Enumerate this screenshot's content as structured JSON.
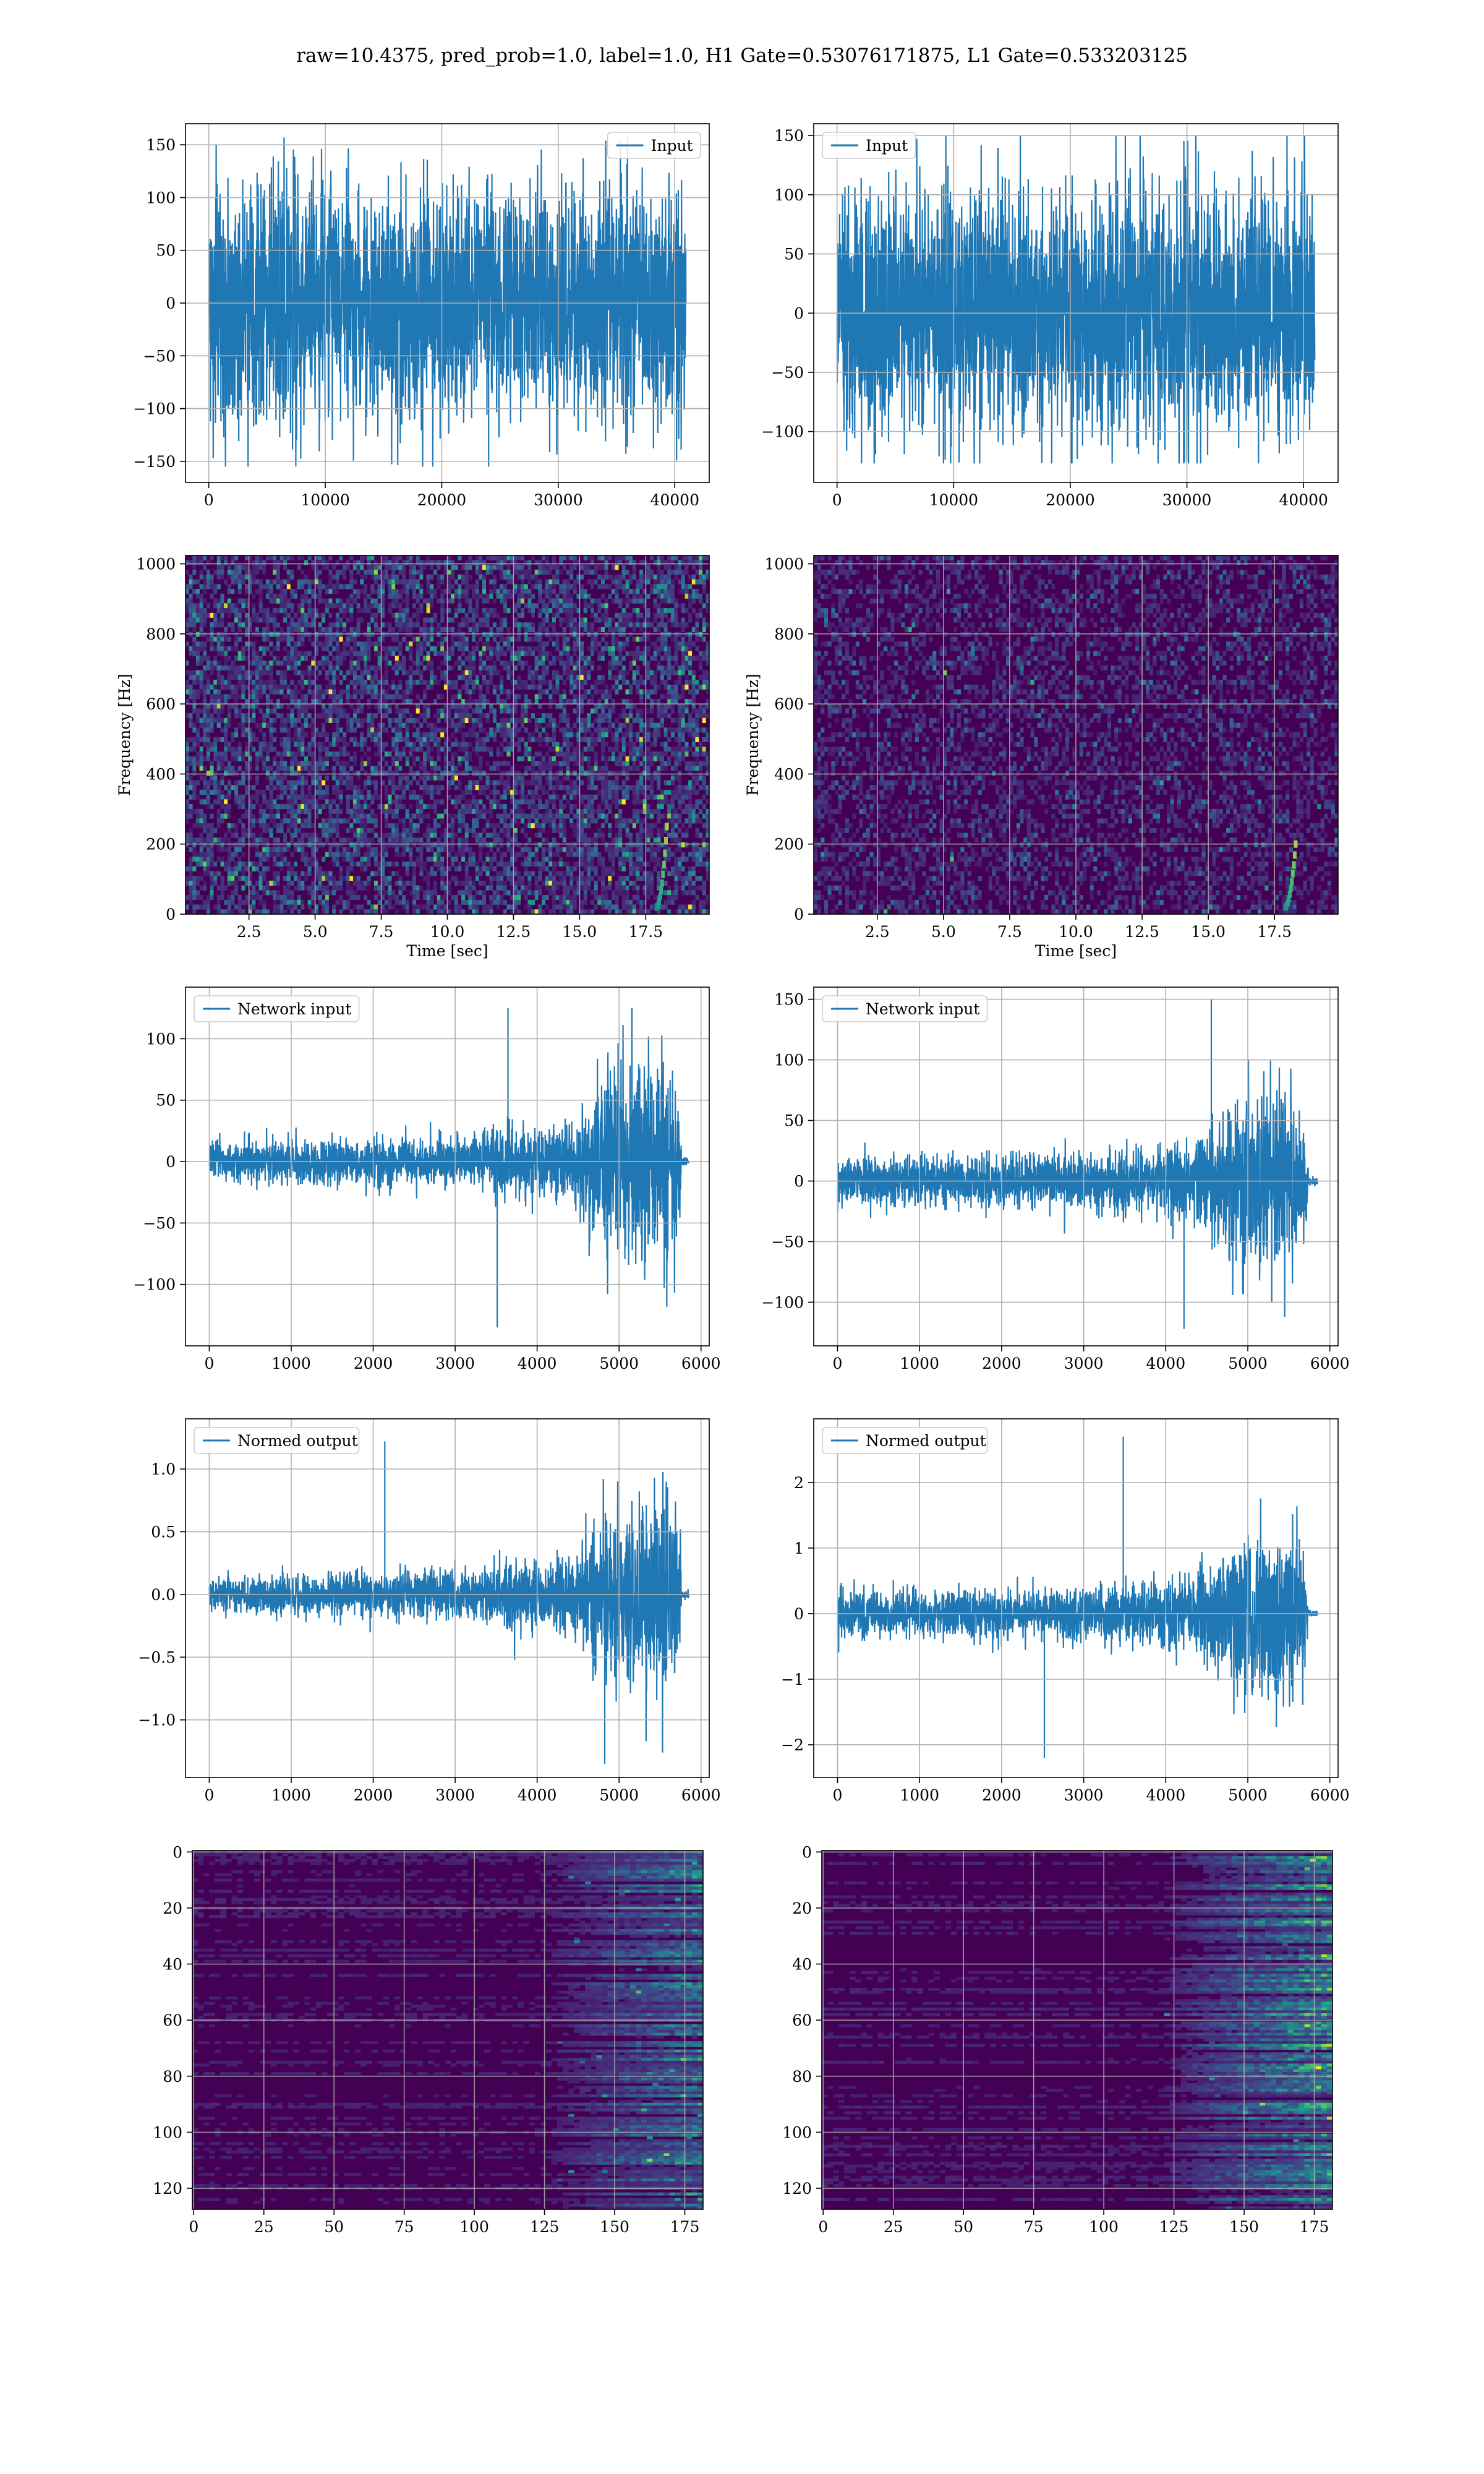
{
  "suptitle": "raw=10.4375, pred_prob=1.0, label=1.0, H1 Gate=0.53076171875, L1 Gate=0.533203125",
  "colors": {
    "line": "#1f77b4",
    "grid": "#b0b0b0",
    "viridis_low": "#440154",
    "viridis_mid": "#21918c",
    "viridis_high": "#fde725"
  },
  "chart_data": [
    {
      "id": "h1-input",
      "type": "line",
      "legend": "Input",
      "legend_loc": "upper right",
      "grid": true,
      "xlim": [
        -2000,
        42960
      ],
      "ylim": [
        -170,
        170
      ],
      "xticks": [
        0,
        10000,
        20000,
        30000,
        40000
      ],
      "yticks": [
        -150,
        -100,
        -50,
        0,
        50,
        100,
        150
      ],
      "envelope": {
        "x": [
          0,
          40960
        ],
        "amplitude_typical": [
          90,
          90
        ],
        "y_max": 157,
        "y_min": -155,
        "noise_type": "stationary gaussian"
      }
    },
    {
      "id": "l1-input",
      "type": "line",
      "legend": "Input",
      "legend_loc": "upper left",
      "grid": true,
      "xlim": [
        -2000,
        42960
      ],
      "ylim": [
        -143,
        160
      ],
      "xticks": [
        0,
        10000,
        20000,
        30000,
        40000
      ],
      "yticks": [
        -100,
        -50,
        0,
        50,
        100,
        150
      ],
      "envelope": {
        "x": [
          0,
          40960
        ],
        "amplitude_typical": [
          85,
          85
        ],
        "y_max": 150,
        "y_min": -127,
        "noise_type": "stationary gaussian"
      }
    },
    {
      "id": "h1-spectrogram",
      "type": "heatmap",
      "colormap": "viridis",
      "ylabel": "Frequency [Hz]",
      "xlabel": "Time [sec]",
      "grid": true,
      "xlim": [
        0.1,
        19.9
      ],
      "ylim": [
        0,
        1024
      ],
      "xticks": [
        2.5,
        5.0,
        7.5,
        10.0,
        12.5,
        15.0,
        17.5
      ],
      "yticks": [
        0,
        200,
        400,
        600,
        800,
        1000
      ],
      "intensity": 0.55,
      "chirp": {
        "t_start": 17.9,
        "t_end": 18.3,
        "f_start": 20,
        "f_end": 250
      }
    },
    {
      "id": "l1-spectrogram",
      "type": "heatmap",
      "colormap": "viridis",
      "ylabel": "Frequency [Hz]",
      "xlabel": "Time [sec]",
      "grid": true,
      "xlim": [
        0.1,
        19.9
      ],
      "ylim": [
        0,
        1024
      ],
      "xticks": [
        2.5,
        5.0,
        7.5,
        10.0,
        12.5,
        15.0,
        17.5
      ],
      "yticks": [
        0,
        200,
        400,
        600,
        800,
        1000
      ],
      "intensity": 0.3,
      "chirp": {
        "t_start": 17.9,
        "t_end": 18.3,
        "f_start": 20,
        "f_end": 200
      }
    },
    {
      "id": "h1-network-input",
      "type": "line",
      "legend": "Network input",
      "legend_loc": "upper left",
      "grid": true,
      "xlim": [
        -290,
        6100
      ],
      "ylim": [
        -150,
        142
      ],
      "xticks": [
        0,
        1000,
        2000,
        3000,
        4000,
        5000,
        6000
      ],
      "yticks": [
        -100,
        -50,
        0,
        50,
        100
      ],
      "envelope": {
        "x": [
          0,
          500,
          1000,
          1500,
          2000,
          2500,
          3000,
          3400,
          3600,
          3900,
          4200,
          4500,
          4700,
          4800,
          5000,
          5200,
          5400,
          5600,
          5750,
          5760,
          5850
        ],
        "amplitude_typical": [
          12,
          13,
          14,
          14,
          15,
          15,
          16,
          18,
          26,
          24,
          22,
          30,
          50,
          58,
          68,
          72,
          70,
          60,
          40,
          3,
          3
        ],
        "y_max": 125,
        "y_min": -135,
        "noise_type": "chirp"
      }
    },
    {
      "id": "l1-network-input",
      "type": "line",
      "legend": "Network input",
      "legend_loc": "upper left",
      "grid": true,
      "xlim": [
        -290,
        6100
      ],
      "ylim": [
        -136,
        160
      ],
      "xticks": [
        0,
        1000,
        2000,
        3000,
        4000,
        5000,
        6000
      ],
      "yticks": [
        -100,
        -50,
        0,
        50,
        100,
        150
      ],
      "envelope": {
        "x": [
          0,
          500,
          1000,
          1500,
          2000,
          2500,
          3000,
          3400,
          3700,
          4000,
          4300,
          4500,
          4700,
          4900,
          5100,
          5300,
          5500,
          5700,
          5740,
          5850
        ],
        "amplitude_typical": [
          16,
          16,
          16,
          17,
          17,
          18,
          18,
          20,
          22,
          24,
          28,
          34,
          46,
          58,
          62,
          60,
          55,
          45,
          3,
          3
        ],
        "y_max": 150,
        "y_min": -122,
        "noise_type": "chirp"
      }
    },
    {
      "id": "h1-normed-output",
      "type": "line",
      "legend": "Normed output",
      "legend_loc": "upper left",
      "grid": true,
      "xlim": [
        -290,
        6100
      ],
      "ylim": [
        -1.46,
        1.4
      ],
      "xticks": [
        0,
        1000,
        2000,
        3000,
        4000,
        5000,
        6000
      ],
      "yticks": [
        -1.0,
        -0.5,
        0.0,
        0.5,
        1.0
      ],
      "envelope": {
        "x": [
          0,
          500,
          1000,
          1500,
          2000,
          2500,
          3000,
          3400,
          3600,
          3900,
          4200,
          4500,
          4700,
          4800,
          5000,
          5200,
          5400,
          5600,
          5750,
          5760,
          5850
        ],
        "amplitude_typical": [
          0.11,
          0.12,
          0.13,
          0.13,
          0.14,
          0.14,
          0.15,
          0.17,
          0.24,
          0.22,
          0.2,
          0.28,
          0.47,
          0.55,
          0.63,
          0.67,
          0.65,
          0.56,
          0.38,
          0.03,
          0.03
        ],
        "y_max": 1.22,
        "y_min": -1.35,
        "noise_type": "chirp"
      }
    },
    {
      "id": "l1-normed-output",
      "type": "line",
      "legend": "Normed output",
      "legend_loc": "upper left",
      "grid": true,
      "xlim": [
        -290,
        6100
      ],
      "ylim": [
        -2.5,
        2.97
      ],
      "xticks": [
        0,
        1000,
        2000,
        3000,
        4000,
        5000,
        6000
      ],
      "yticks": [
        -2,
        -1,
        0,
        1,
        2
      ],
      "envelope": {
        "x": [
          0,
          500,
          1000,
          1500,
          2000,
          2500,
          3000,
          3400,
          3700,
          4000,
          4300,
          4500,
          4700,
          4900,
          5100,
          5300,
          5500,
          5700,
          5740,
          5850
        ],
        "amplitude_typical": [
          0.28,
          0.28,
          0.29,
          0.3,
          0.3,
          0.31,
          0.32,
          0.35,
          0.38,
          0.42,
          0.48,
          0.58,
          0.8,
          1.0,
          1.08,
          1.05,
          0.96,
          0.78,
          0.04,
          0.04
        ],
        "y_max": 2.7,
        "y_min": -2.2,
        "noise_type": "chirp"
      }
    },
    {
      "id": "h1-gated-features",
      "type": "heatmap",
      "colormap": "viridis",
      "grid": true,
      "xlim": [
        -0.5,
        181.5
      ],
      "ylim": [
        127.5,
        -0.5
      ],
      "xticks": [
        0,
        25,
        50,
        75,
        100,
        125,
        150,
        175
      ],
      "yticks": [
        0,
        20,
        40,
        60,
        80,
        100,
        120
      ],
      "columns": 182,
      "rows": 128,
      "activity_onset_column": 125,
      "intensity": 0.55
    },
    {
      "id": "l1-gated-features",
      "type": "heatmap",
      "colormap": "viridis",
      "grid": true,
      "xlim": [
        -0.5,
        181.5
      ],
      "ylim": [
        127.5,
        -0.5
      ],
      "xticks": [
        0,
        25,
        50,
        75,
        100,
        125,
        150,
        175
      ],
      "yticks": [
        0,
        20,
        40,
        60,
        80,
        100,
        120
      ],
      "columns": 182,
      "rows": 128,
      "activity_onset_column": 120,
      "intensity": 0.7
    }
  ]
}
